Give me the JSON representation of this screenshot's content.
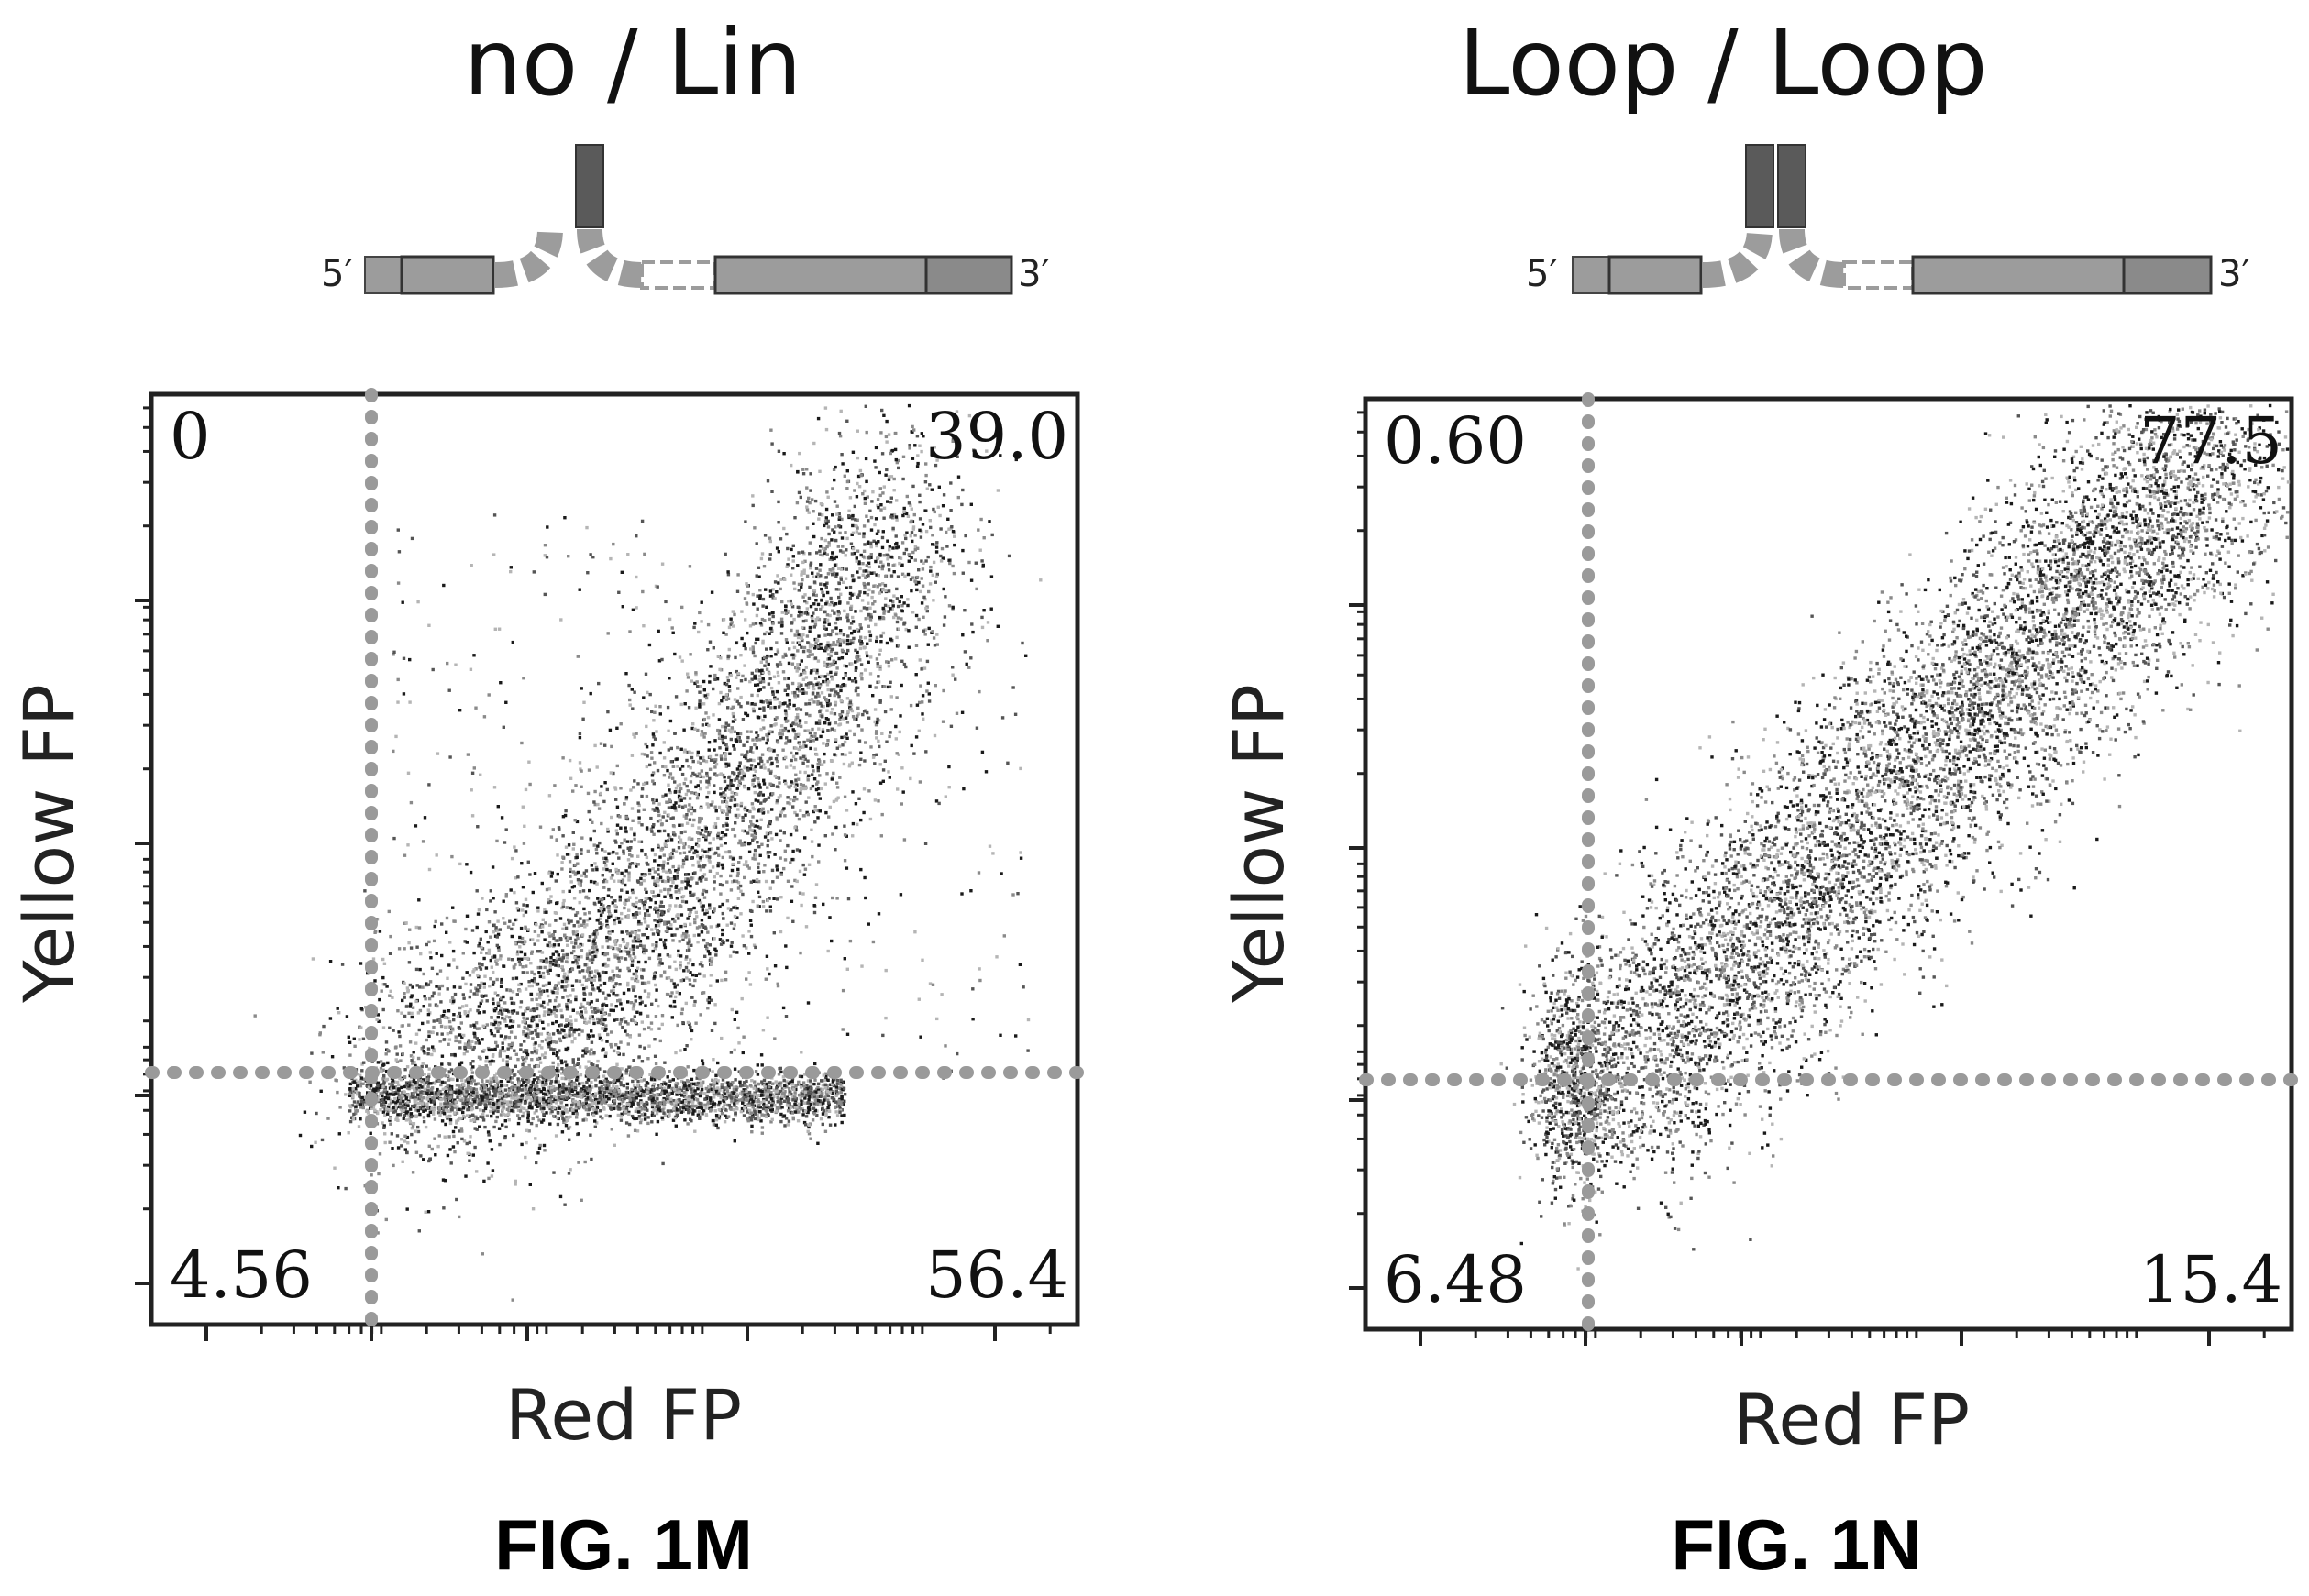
{
  "chart_data": [
    {
      "type": "scatter",
      "figure_label": "FIG. 1M",
      "title": "no / Lin",
      "xlabel": "Red FP",
      "ylabel": "Yellow FP",
      "x_scale": "log",
      "y_scale": "log",
      "construct_labels": [
        "5′",
        "3′"
      ],
      "quadrants": {
        "upper_left": "0",
        "upper_right": "39.0",
        "lower_left": "4.56",
        "lower_right": "56.4"
      },
      "grid": false,
      "colors": {
        "gate": "#9a9a9a",
        "dots": [
          "#1a1a1a",
          "#555555",
          "#8a8a8a",
          "#b5b5b5"
        ],
        "construct": "#9c9c9c",
        "construct_dark": "#5a5a5a"
      }
    },
    {
      "type": "scatter",
      "figure_label": "FIG. 1N",
      "title": "Loop / Loop",
      "xlabel": "Red FP",
      "ylabel": "Yellow FP",
      "x_scale": "log",
      "y_scale": "log",
      "construct_labels": [
        "5′",
        "3′"
      ],
      "quadrants": {
        "upper_left": "0.60",
        "upper_right": "77.5",
        "lower_left": "6.48",
        "lower_right": "15.4"
      },
      "grid": false,
      "colors": {
        "gate": "#9a9a9a",
        "dots": [
          "#1a1a1a",
          "#555555",
          "#8a8a8a",
          "#b5b5b5"
        ],
        "construct": "#9c9c9c",
        "construct_dark": "#5a5a5a"
      }
    }
  ]
}
